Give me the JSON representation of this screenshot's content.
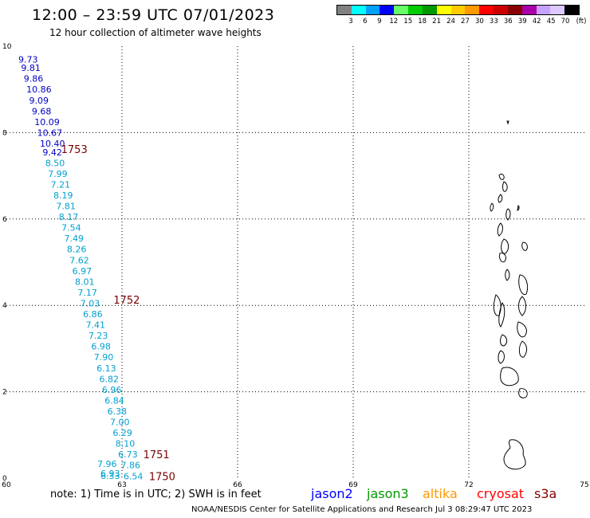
{
  "header": {
    "title": "12:00 – 23:59 UTC 07/01/2023",
    "subtitle": "12 hour collection of altimeter wave heights"
  },
  "color_scale": {
    "colors": [
      "#808080",
      "#00ffff",
      "#00a0ff",
      "#0000ff",
      "#66ff66",
      "#00cc00",
      "#009900",
      "#ffff00",
      "#ffcc00",
      "#ff9900",
      "#ff0000",
      "#cc0000",
      "#880000",
      "#aa00aa",
      "#c8a0ff",
      "#ddc8ff",
      "#000000"
    ],
    "labels": [
      "3",
      "6",
      "9",
      "12",
      "15",
      "18",
      "21",
      "24",
      "27",
      "30",
      "33",
      "36",
      "39",
      "42",
      "45",
      "70",
      "(ft)"
    ]
  },
  "axes": {
    "x_ticks": [
      "60",
      "63",
      "66",
      "69",
      "72",
      "75"
    ],
    "y_ticks": [
      "0",
      "2",
      "4",
      "6",
      "8",
      "10"
    ]
  },
  "map": {
    "x_range": [
      60,
      75
    ],
    "y_range": [
      0,
      10
    ],
    "gridlines": true
  },
  "track": [
    {
      "lon": 60.31,
      "lat": 9.7,
      "v": "9.73",
      "color": "#0000c0"
    },
    {
      "lon": 60.38,
      "lat": 9.5,
      "v": "9.81",
      "color": "#0000c0"
    },
    {
      "lon": 60.45,
      "lat": 9.25,
      "v": "9.86",
      "color": "#0000c0"
    },
    {
      "lon": 60.52,
      "lat": 9.0,
      "v": "10.86",
      "color": "#0000c0"
    },
    {
      "lon": 60.59,
      "lat": 8.75,
      "v": "9.09",
      "color": "#0000c0"
    },
    {
      "lon": 60.66,
      "lat": 8.5,
      "v": "9.68",
      "color": "#0000c0"
    },
    {
      "lon": 60.73,
      "lat": 8.25,
      "v": "10.09",
      "color": "#0000c0"
    },
    {
      "lon": 60.8,
      "lat": 8.0,
      "v": "10.67",
      "color": "#0000c0"
    },
    {
      "lon": 60.87,
      "lat": 7.75,
      "v": "10.40",
      "color": "#0000c0"
    },
    {
      "lon": 60.94,
      "lat": 7.55,
      "v": "9.42",
      "color": "#0000c0"
    },
    {
      "lon": 61.01,
      "lat": 7.3,
      "v": "8.50",
      "color": "#00a0d0"
    },
    {
      "lon": 61.08,
      "lat": 7.05,
      "v": "7.99",
      "color": "#00a0d0"
    },
    {
      "lon": 61.15,
      "lat": 6.8,
      "v": "7.21",
      "color": "#00a0d0"
    },
    {
      "lon": 61.22,
      "lat": 6.55,
      "v": "8.19",
      "color": "#00a0d0"
    },
    {
      "lon": 61.29,
      "lat": 6.3,
      "v": "7.81",
      "color": "#00a0d0"
    },
    {
      "lon": 61.36,
      "lat": 6.05,
      "v": "8.17",
      "color": "#00a0d0"
    },
    {
      "lon": 61.43,
      "lat": 5.8,
      "v": "7.54",
      "color": "#00a0d0"
    },
    {
      "lon": 61.5,
      "lat": 5.55,
      "v": "7.49",
      "color": "#00a0d0"
    },
    {
      "lon": 61.57,
      "lat": 5.3,
      "v": "8.26",
      "color": "#00a0d0"
    },
    {
      "lon": 61.64,
      "lat": 5.05,
      "v": "7.62",
      "color": "#00a0d0"
    },
    {
      "lon": 61.71,
      "lat": 4.8,
      "v": "6.97",
      "color": "#00a0d0"
    },
    {
      "lon": 61.78,
      "lat": 4.55,
      "v": "8.01",
      "color": "#00a0d0"
    },
    {
      "lon": 61.85,
      "lat": 4.3,
      "v": "7.17",
      "color": "#00a0d0"
    },
    {
      "lon": 61.92,
      "lat": 4.05,
      "v": "7.03",
      "color": "#00a0d0"
    },
    {
      "lon": 61.99,
      "lat": 3.8,
      "v": "6.86",
      "color": "#00a0d0"
    },
    {
      "lon": 62.06,
      "lat": 3.55,
      "v": "7.41",
      "color": "#00a0d0"
    },
    {
      "lon": 62.13,
      "lat": 3.3,
      "v": "7.23",
      "color": "#00a0d0"
    },
    {
      "lon": 62.2,
      "lat": 3.05,
      "v": "6.98",
      "color": "#00a0d0"
    },
    {
      "lon": 62.27,
      "lat": 2.8,
      "v": "7.90",
      "color": "#00a0d0"
    },
    {
      "lon": 62.34,
      "lat": 2.55,
      "v": "6.13",
      "color": "#00a0d0"
    },
    {
      "lon": 62.41,
      "lat": 2.3,
      "v": "6.82",
      "color": "#00a0d0"
    },
    {
      "lon": 62.48,
      "lat": 2.05,
      "v": "6.96",
      "color": "#00a0d0"
    },
    {
      "lon": 62.55,
      "lat": 1.8,
      "v": "6.84",
      "color": "#00a0d0"
    },
    {
      "lon": 62.62,
      "lat": 1.55,
      "v": "6.38",
      "color": "#00a0d0"
    },
    {
      "lon": 62.69,
      "lat": 1.3,
      "v": "7.00",
      "color": "#00a0d0"
    },
    {
      "lon": 62.76,
      "lat": 1.05,
      "v": "6.29",
      "color": "#00a0d0"
    },
    {
      "lon": 62.83,
      "lat": 0.8,
      "v": "8.10",
      "color": "#00a0d0"
    },
    {
      "lon": 62.9,
      "lat": 0.55,
      "v": "6.73",
      "color": "#00a0d0"
    },
    {
      "lon": 62.97,
      "lat": 0.3,
      "v": "7.86",
      "color": "#00a0d0"
    },
    {
      "lon": 63.04,
      "lat": 0.05,
      "v": "6.54",
      "color": "#00a0d0"
    }
  ],
  "time_labels": [
    {
      "lon": 61.42,
      "lat": 7.62,
      "text": "1753"
    },
    {
      "lon": 62.78,
      "lat": 4.13,
      "text": "1752"
    },
    {
      "lon": 63.55,
      "lat": 0.55,
      "text": "1751"
    },
    {
      "lon": 63.7,
      "lat": 0.05,
      "text": "1750"
    }
  ],
  "bottom_values": [
    "7.96",
    "6.93",
    "6.33"
  ],
  "footer": {
    "note": "note: 1) Time is in UTC; 2) SWH is in feet",
    "legend": [
      {
        "name": "jason2",
        "color": "#0000ff"
      },
      {
        "name": "jason3",
        "color": "#009900"
      },
      {
        "name": "altika",
        "color": "#ff9900"
      },
      {
        "name": "cryosat",
        "color": "#ff0000"
      },
      {
        "name": "s3a",
        "color": "#880000"
      }
    ],
    "credit": "NOAA/NESDIS Center for Satellite Applications and Research   Jul  3 08:29:47 UTC 2023"
  }
}
